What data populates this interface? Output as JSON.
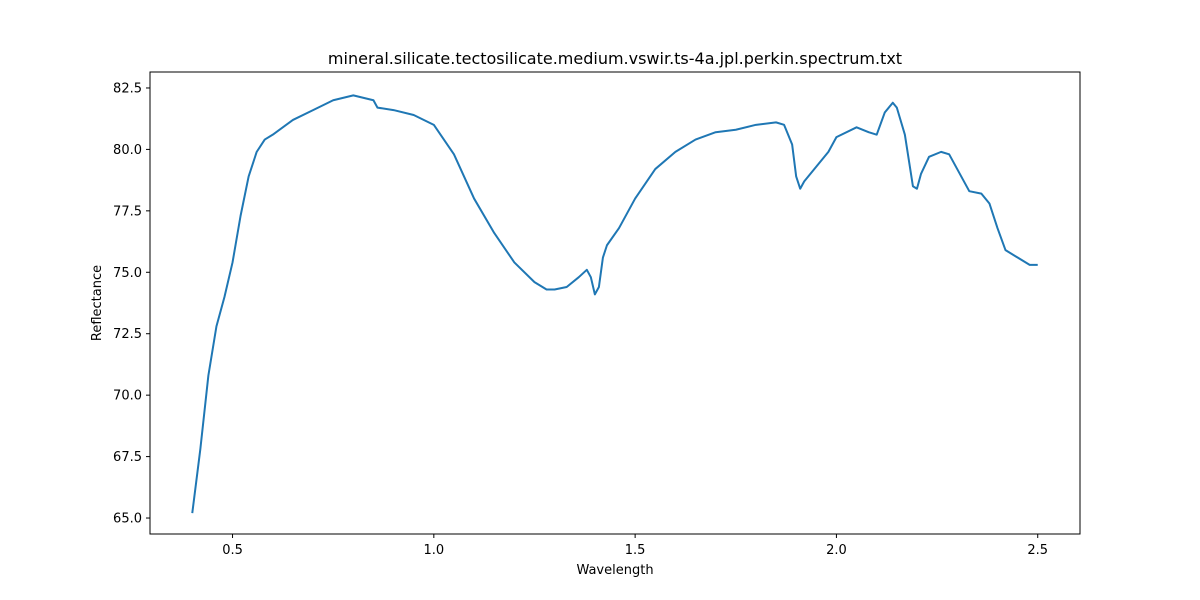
{
  "chart_data": {
    "type": "line",
    "title": "mineral.silicate.tectosilicate.medium.vswir.ts-4a.jpl.perkin.spectrum.txt",
    "xlabel": "Wavelength",
    "ylabel": "Reflectance",
    "xlim": [
      0.295,
      2.605
    ],
    "ylim": [
      64.35,
      83.15
    ],
    "xticks": [
      0.5,
      1.0,
      1.5,
      2.0,
      2.5
    ],
    "xtick_labels": [
      "0.5",
      "1.0",
      "1.5",
      "2.0",
      "2.5"
    ],
    "yticks": [
      65.0,
      67.5,
      70.0,
      72.5,
      75.0,
      77.5,
      80.0,
      82.5
    ],
    "ytick_labels": [
      "65.0",
      "67.5",
      "70.0",
      "72.5",
      "75.0",
      "77.5",
      "80.0",
      "82.5"
    ],
    "grid": false,
    "series": [
      {
        "color": "#1f77b4",
        "x": [
          0.4,
          0.42,
          0.44,
          0.46,
          0.48,
          0.5,
          0.52,
          0.54,
          0.56,
          0.58,
          0.6,
          0.65,
          0.7,
          0.75,
          0.8,
          0.85,
          0.86,
          0.9,
          0.95,
          1.0,
          1.05,
          1.1,
          1.15,
          1.2,
          1.25,
          1.28,
          1.3,
          1.33,
          1.36,
          1.38,
          1.39,
          1.4,
          1.41,
          1.42,
          1.43,
          1.46,
          1.5,
          1.55,
          1.6,
          1.65,
          1.7,
          1.75,
          1.8,
          1.85,
          1.87,
          1.89,
          1.9,
          1.91,
          1.92,
          1.95,
          1.98,
          2.0,
          2.05,
          2.08,
          2.1,
          2.12,
          2.14,
          2.15,
          2.17,
          2.19,
          2.2,
          2.21,
          2.23,
          2.26,
          2.28,
          2.3,
          2.33,
          2.36,
          2.38,
          2.4,
          2.42,
          2.45,
          2.48,
          2.5
        ],
        "y": [
          65.2,
          67.8,
          70.8,
          72.8,
          74.0,
          75.4,
          77.3,
          78.9,
          79.9,
          80.4,
          80.6,
          81.2,
          81.6,
          82.0,
          82.2,
          82.0,
          81.7,
          81.6,
          81.4,
          81.0,
          79.8,
          78.0,
          76.6,
          75.4,
          74.6,
          74.3,
          74.3,
          74.4,
          74.8,
          75.1,
          74.8,
          74.1,
          74.4,
          75.6,
          76.1,
          76.8,
          78.0,
          79.2,
          79.9,
          80.4,
          80.7,
          80.8,
          81.0,
          81.1,
          81.0,
          80.2,
          78.9,
          78.4,
          78.7,
          79.3,
          79.9,
          80.5,
          80.9,
          80.7,
          80.6,
          81.5,
          81.9,
          81.7,
          80.6,
          78.5,
          78.4,
          79.0,
          79.7,
          79.9,
          79.8,
          79.2,
          78.3,
          78.2,
          77.8,
          76.8,
          75.9,
          75.6,
          75.3,
          75.3
        ]
      }
    ]
  }
}
